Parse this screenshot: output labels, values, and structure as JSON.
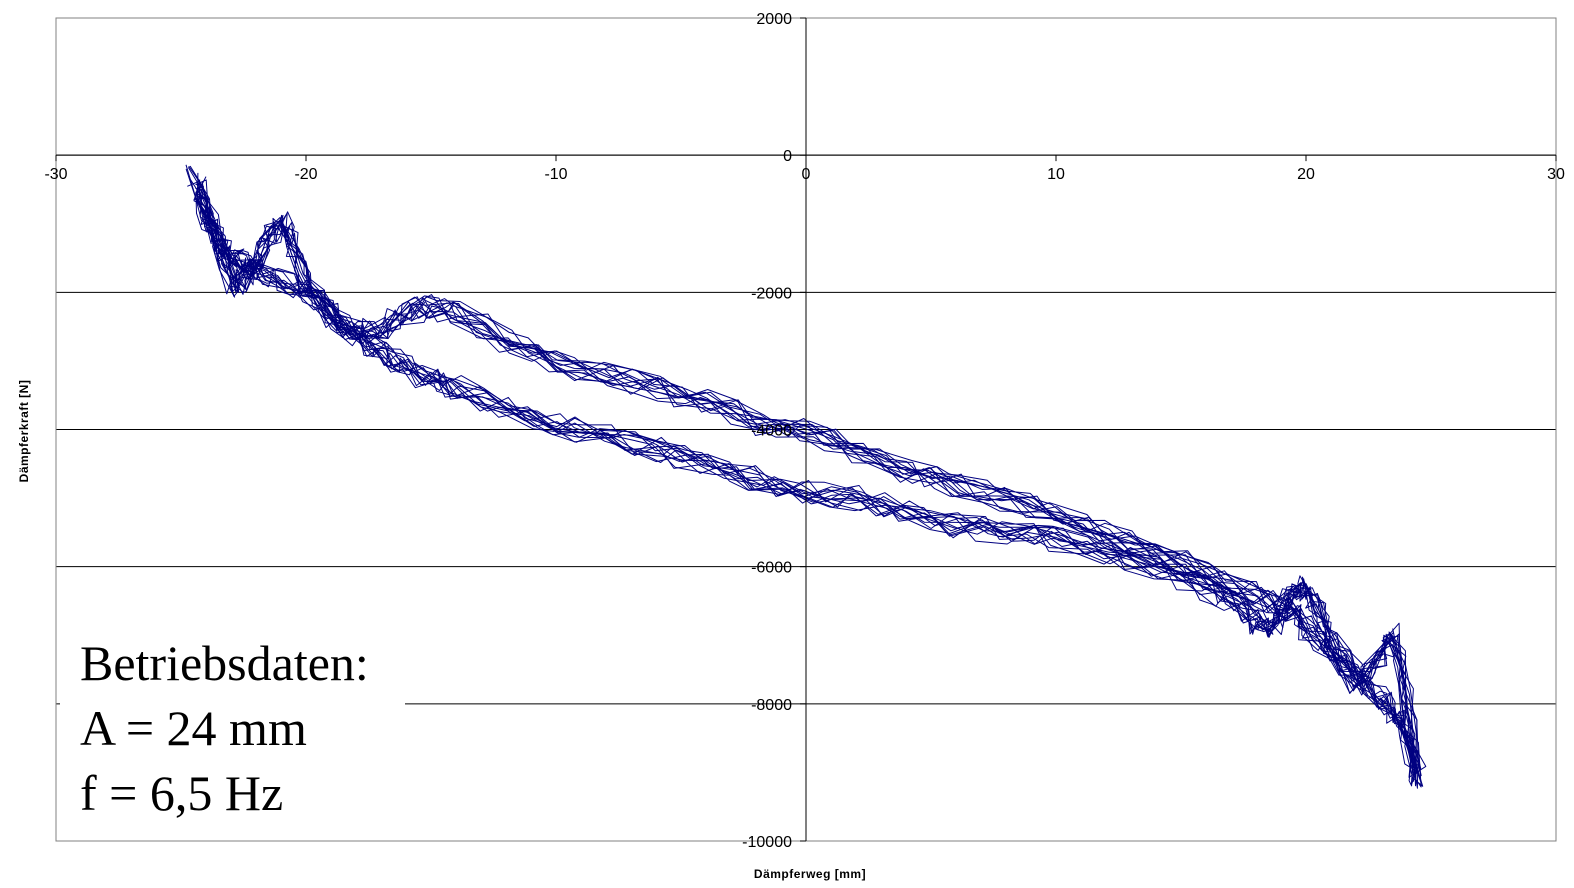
{
  "chart_data": {
    "type": "line",
    "title": "",
    "xlabel": "Dämpferweg [mm]",
    "ylabel": "Dämpferkraft [N]",
    "xlim": [
      -30,
      30
    ],
    "ylim": [
      -10000,
      2000
    ],
    "x_ticks": [
      -30,
      -20,
      -10,
      0,
      10,
      20,
      30
    ],
    "y_ticks": [
      2000,
      0,
      -2000,
      -4000,
      -6000,
      -8000,
      -10000
    ],
    "x_tick_labels": [
      "-30",
      "-20",
      "-10",
      "0",
      "10",
      "20",
      "30"
    ],
    "y_tick_labels": [
      "2000",
      "0",
      "-2000",
      "-4000",
      "-6000",
      "-8000",
      "-10000"
    ],
    "grid": "horizontal major gridlines",
    "legend": "none",
    "series_color": "#000080",
    "annotation": [
      "Betriebsdaten:",
      "A = 24 mm",
      "f = 6,5 Hz"
    ],
    "series": [
      {
        "values_description_free": true,
        "x": [
          -24.5,
          -24,
          -23.5,
          -23,
          -22.5,
          -22,
          -21.5,
          -21,
          -20.5,
          -20,
          -19,
          -18,
          -17,
          -16,
          -15,
          -14,
          -12,
          -10,
          -8,
          -6,
          -4,
          -2,
          0,
          2,
          4,
          6,
          8,
          10,
          12,
          14,
          16,
          18,
          19,
          19.5,
          20,
          20.5,
          21,
          22,
          23,
          23.5,
          24,
          24.3
        ],
        "y": [
          -300,
          -800,
          -1200,
          -1900,
          -1800,
          -1600,
          -1200,
          -1000,
          -1300,
          -1900,
          -2400,
          -2600,
          -2500,
          -2300,
          -2200,
          -2300,
          -2700,
          -3000,
          -3200,
          -3400,
          -3600,
          -3900,
          -4000,
          -4300,
          -4600,
          -4800,
          -5000,
          -5200,
          -5500,
          -5800,
          -6100,
          -6400,
          -6600,
          -6400,
          -6300,
          -6600,
          -7100,
          -7700,
          -7300,
          -7000,
          -7800,
          -9000
        ]
      },
      {
        "x": [
          -24.3,
          -24,
          -23.5,
          -23,
          -22.5,
          -22,
          -21,
          -20,
          -19,
          -18,
          -17,
          -16,
          -15,
          -14,
          -12,
          -10,
          -8,
          -6,
          -4,
          -2,
          0,
          2,
          4,
          6,
          8,
          10,
          12,
          14,
          16,
          17,
          18,
          18.5,
          19,
          19.5,
          20,
          21,
          22,
          23,
          23.5,
          24,
          24.5
        ],
        "y": [
          -500,
          -900,
          -1300,
          -1500,
          -1600,
          -1700,
          -1800,
          -2000,
          -2300,
          -2600,
          -2900,
          -3100,
          -3300,
          -3400,
          -3700,
          -3900,
          -4100,
          -4300,
          -4500,
          -4700,
          -4900,
          -5000,
          -5200,
          -5400,
          -5500,
          -5600,
          -5800,
          -6000,
          -6300,
          -6500,
          -6800,
          -6900,
          -6700,
          -6600,
          -6900,
          -7200,
          -7600,
          -7900,
          -8100,
          -8400,
          -9100
        ]
      }
    ]
  },
  "notes": [
    "Betriebsdaten:",
    "A = 24 mm",
    "f = 6,5 Hz"
  ]
}
